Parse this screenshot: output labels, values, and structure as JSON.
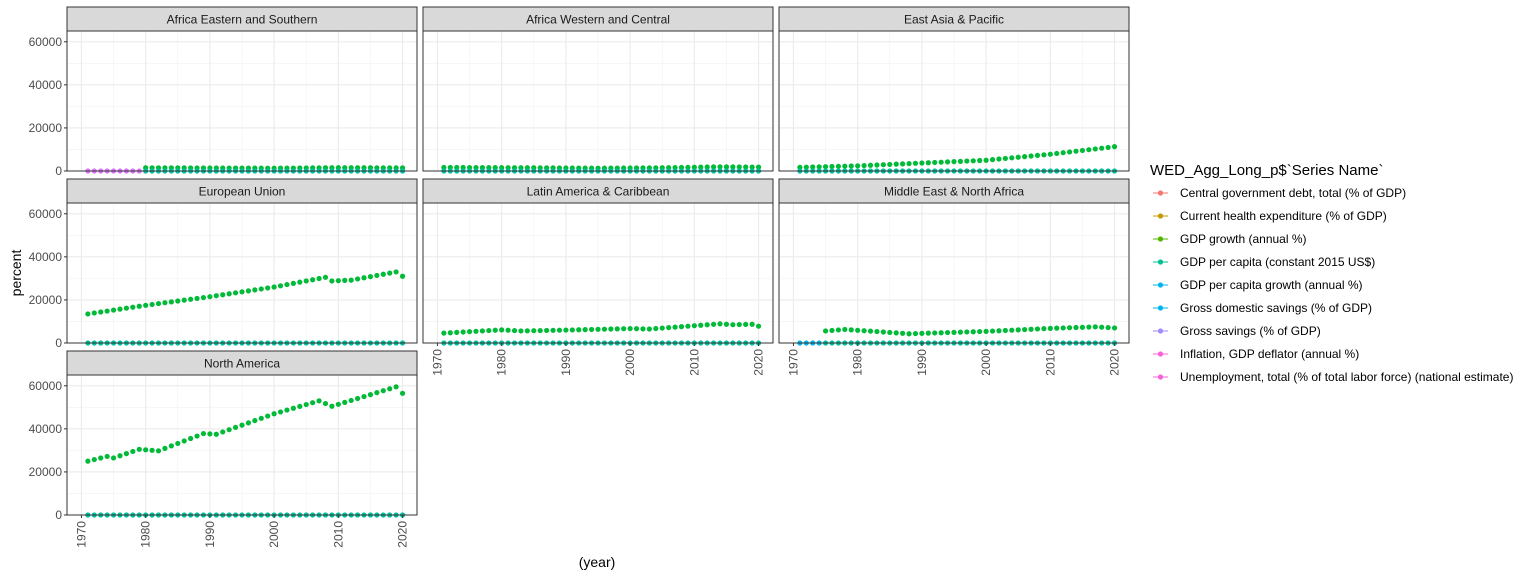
{
  "chart_data": {
    "type": "scatter",
    "layout": "facet-grid",
    "xlabel": "(year)",
    "ylabel": "percent",
    "xlim": [
      1970,
      2020
    ],
    "ylim": [
      0,
      65000
    ],
    "x_ticks": [
      1970,
      1980,
      1990,
      2000,
      2010,
      2020
    ],
    "y_ticks": [
      0,
      20000,
      40000,
      60000
    ],
    "grid": true,
    "legend": {
      "title": "WED_Agg_Long_p$`Series Name`",
      "position": "right",
      "entries": [
        {
          "name": "Central government debt, total (% of GDP)",
          "color": "#F8766D"
        },
        {
          "name": "Current health expenditure (% of GDP)",
          "color": "#C49A00"
        },
        {
          "name": "GDP growth (annual %)",
          "color": "#53B400"
        },
        {
          "name": "GDP per capita (constant 2015 US$)",
          "color": "#00C094"
        },
        {
          "name": "GDP per capita growth (annual %)",
          "color": "#00B6EB"
        },
        {
          "name": "Gross domestic savings (% of GDP)",
          "color": "#00B6EB"
        },
        {
          "name": "Gross savings (% of GDP)",
          "color": "#A58AFF"
        },
        {
          "name": "Inflation, GDP deflator (annual %)",
          "color": "#FB61D7"
        },
        {
          "name": "Unemployment, total (% of total labor force) (national estimate)",
          "color": "#FB61D7"
        }
      ]
    },
    "panels": [
      {
        "title": "Africa Eastern and Southern",
        "series": [
          {
            "name": "GDP per capita (constant 2015 US$)",
            "color": "#00BA38",
            "x_start": 1980,
            "x_end": 2020,
            "knots": [
              [
                1980,
                1500
              ],
              [
                1990,
                1400
              ],
              [
                2000,
                1300
              ],
              [
                2010,
                1550
              ],
              [
                2020,
                1450
              ]
            ]
          },
          {
            "name": "Inflation, GDP deflator (annual %)",
            "color": "#DB72FB",
            "x_start": 1971,
            "x_end": 1979,
            "knots": [
              [
                1971,
                10
              ],
              [
                1979,
                12
              ]
            ]
          },
          {
            "name": "GDP per capita growth (annual %)",
            "color": "#00C19F",
            "x_start": 1980,
            "x_end": 2020,
            "knots": [
              [
                1980,
                1
              ],
              [
                2020,
                1
              ]
            ]
          }
        ]
      },
      {
        "title": "Africa Western and Central",
        "series": [
          {
            "name": "GDP per capita (constant 2015 US$)",
            "color": "#00BA38",
            "x_start": 1971,
            "x_end": 2020,
            "knots": [
              [
                1971,
                1650
              ],
              [
                1985,
                1500
              ],
              [
                1995,
                1300
              ],
              [
                2005,
                1500
              ],
              [
                2014,
                1950
              ],
              [
                2020,
                1800
              ]
            ]
          },
          {
            "name": "GDP per capita growth (annual %)",
            "color": "#00C19F",
            "x_start": 1971,
            "x_end": 2020,
            "knots": [
              [
                1971,
                1
              ],
              [
                2020,
                1
              ]
            ]
          }
        ]
      },
      {
        "title": "East Asia & Pacific",
        "series": [
          {
            "name": "GDP per capita (constant 2015 US$)",
            "color": "#00BA38",
            "x_start": 1971,
            "x_end": 2020,
            "knots": [
              [
                1971,
                1700
              ],
              [
                1980,
                2400
              ],
              [
                1990,
                3700
              ],
              [
                2000,
                5000
              ],
              [
                2010,
                7800
              ],
              [
                2020,
                11300
              ]
            ]
          },
          {
            "name": "GDP per capita growth (annual %)",
            "color": "#00C19F",
            "x_start": 1971,
            "x_end": 2020,
            "knots": [
              [
                1971,
                1
              ],
              [
                2020,
                1
              ]
            ]
          }
        ]
      },
      {
        "title": "European Union",
        "series": [
          {
            "name": "GDP per capita (constant 2015 US$)",
            "color": "#00BA38",
            "x_start": 1971,
            "x_end": 2020,
            "knots": [
              [
                1971,
                13500
              ],
              [
                1980,
                17500
              ],
              [
                1990,
                21500
              ],
              [
                2000,
                26000
              ],
              [
                2008,
                30500
              ],
              [
                2009,
                28800
              ],
              [
                2012,
                29200
              ],
              [
                2019,
                33000
              ],
              [
                2020,
                31000
              ]
            ]
          },
          {
            "name": "GDP per capita growth (annual %)",
            "color": "#00C19F",
            "x_start": 1971,
            "x_end": 2020,
            "knots": [
              [
                1971,
                1
              ],
              [
                2020,
                1
              ]
            ]
          }
        ]
      },
      {
        "title": "Latin America & Caribbean",
        "series": [
          {
            "name": "GDP per capita (constant 2015 US$)",
            "color": "#00BA38",
            "x_start": 1971,
            "x_end": 2020,
            "knots": [
              [
                1971,
                4600
              ],
              [
                1980,
                6100
              ],
              [
                1983,
                5600
              ],
              [
                1990,
                6000
              ],
              [
                2000,
                6700
              ],
              [
                2003,
                6500
              ],
              [
                2014,
                8900
              ],
              [
                2016,
                8500
              ],
              [
                2019,
                8700
              ],
              [
                2020,
                7800
              ]
            ]
          },
          {
            "name": "GDP per capita growth (annual %)",
            "color": "#00C19F",
            "x_start": 1971,
            "x_end": 2020,
            "knots": [
              [
                1971,
                1
              ],
              [
                2020,
                1
              ]
            ]
          }
        ]
      },
      {
        "title": "Middle East & North Africa",
        "series": [
          {
            "name": "GDP per capita (constant 2015 US$)",
            "color": "#00BA38",
            "x_start": 1975,
            "x_end": 2020,
            "knots": [
              [
                1975,
                5600
              ],
              [
                1978,
                6300
              ],
              [
                1988,
                4300
              ],
              [
                2000,
                5400
              ],
              [
                2010,
                6800
              ],
              [
                2017,
                7500
              ],
              [
                2020,
                7000
              ]
            ]
          },
          {
            "name": "GDP per capita growth (annual %)",
            "color": "#00B6EB",
            "x_start": 1971,
            "x_end": 1974,
            "knots": [
              [
                1971,
                1
              ],
              [
                1974,
                1
              ]
            ]
          },
          {
            "name": "GDP per capita growth (annual %)",
            "color": "#00C19F",
            "x_start": 1975,
            "x_end": 2020,
            "knots": [
              [
                1975,
                1
              ],
              [
                2020,
                1
              ]
            ]
          }
        ]
      },
      {
        "title": "North America",
        "series": [
          {
            "name": "GDP per capita (constant 2015 US$)",
            "color": "#00BA38",
            "x_start": 1971,
            "x_end": 2020,
            "knots": [
              [
                1971,
                25000
              ],
              [
                1974,
                27200
              ],
              [
                1975,
                26500
              ],
              [
                1979,
                30500
              ],
              [
                1982,
                29800
              ],
              [
                1989,
                37800
              ],
              [
                1991,
                37500
              ],
              [
                2000,
                47000
              ],
              [
                2007,
                53000
              ],
              [
                2009,
                50500
              ],
              [
                2019,
                59500
              ],
              [
                2020,
                56500
              ]
            ]
          },
          {
            "name": "GDP per capita growth (annual %)",
            "color": "#00C19F",
            "x_start": 1971,
            "x_end": 2020,
            "knots": [
              [
                1971,
                1
              ],
              [
                2020,
                1
              ]
            ]
          }
        ]
      }
    ]
  }
}
